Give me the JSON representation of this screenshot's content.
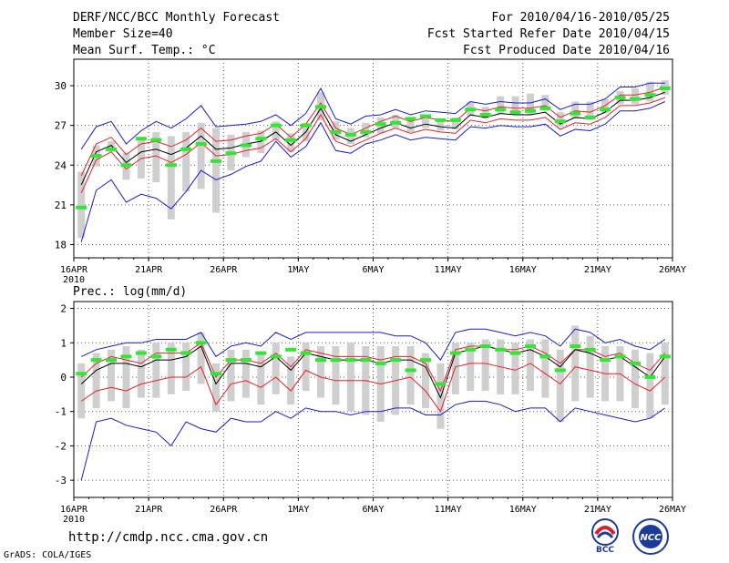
{
  "header": {
    "title": "DERF/NCC/BCC Monthly Forecast",
    "member_size": "Member Size=40",
    "variable": "Mean Surf. Temp.: °C",
    "forecast_period": "For 2010/04/16-2010/05/25",
    "started_refer": "Fcst Started Refer Date 2010/04/15",
    "produced": "Fcst Produced Date 2010/04/16"
  },
  "footer": {
    "url": "http://cmdp.ncc.cma.gov.cn",
    "credit": "GrADS: COLA/IGES"
  },
  "logos": {
    "bcc": "BCC",
    "ncc": "NCC"
  },
  "colors": {
    "mean_line": "#000000",
    "spread_line": "#e8212a",
    "range_line": "#1a1ad6",
    "box": "#cfcfcf",
    "marker": "#33e633",
    "grid": "#555555"
  },
  "chart_data": [
    {
      "type": "line",
      "title": "Mean Surf. Temp.: °C",
      "xlabel": "",
      "ylabel": "",
      "x_ticks": [
        "16APR",
        "21APR",
        "26APR",
        "1MAY",
        "6MAY",
        "11MAY",
        "16MAY",
        "21MAY",
        "26MAY"
      ],
      "x_year": "2010",
      "xlim": [
        0,
        40
      ],
      "ylim": [
        17,
        32
      ],
      "y_ticks": [
        18,
        21,
        24,
        27,
        30
      ],
      "x": [
        0,
        1,
        2,
        3,
        4,
        5,
        6,
        7,
        8,
        9,
        10,
        11,
        12,
        13,
        14,
        15,
        16,
        17,
        18,
        19,
        20,
        21,
        22,
        23,
        24,
        25,
        26,
        27,
        28,
        29,
        30,
        31,
        32,
        33,
        34,
        35,
        36,
        37,
        38,
        39
      ],
      "series": [
        {
          "name": "ensemble mean",
          "values": [
            22.5,
            25.0,
            25.5,
            24.2,
            25.0,
            25.2,
            24.8,
            25.3,
            26.2,
            25.2,
            25.3,
            25.6,
            25.8,
            26.5,
            25.5,
            26.5,
            28.3,
            26.3,
            25.8,
            26.3,
            26.8,
            27.2,
            26.8,
            27.1,
            26.9,
            26.8,
            27.8,
            27.6,
            27.9,
            27.8,
            27.8,
            28.0,
            27.1,
            27.6,
            27.5,
            28.0,
            28.9,
            28.9,
            29.1,
            29.5
          ]
        },
        {
          "name": "spread upper",
          "values": [
            23.2,
            25.6,
            26.1,
            24.8,
            25.6,
            25.8,
            25.4,
            25.9,
            26.8,
            25.8,
            25.9,
            26.2,
            26.4,
            27.1,
            26.1,
            27.1,
            28.7,
            26.8,
            26.3,
            26.8,
            27.3,
            27.7,
            27.3,
            27.6,
            27.4,
            27.3,
            28.3,
            28.1,
            28.4,
            28.3,
            28.3,
            28.5,
            27.6,
            28.1,
            28.0,
            28.5,
            29.3,
            29.3,
            29.5,
            29.9
          ]
        },
        {
          "name": "spread lower",
          "values": [
            21.9,
            24.4,
            25.0,
            23.7,
            24.5,
            24.7,
            24.2,
            24.8,
            25.7,
            24.7,
            24.8,
            25.1,
            25.3,
            26.0,
            25.0,
            26.0,
            27.8,
            25.8,
            25.4,
            25.9,
            26.4,
            26.8,
            26.4,
            26.7,
            26.5,
            26.4,
            27.4,
            27.2,
            27.5,
            27.4,
            27.4,
            27.6,
            26.7,
            27.2,
            27.1,
            27.6,
            28.5,
            28.5,
            28.7,
            29.1
          ]
        },
        {
          "name": "range max",
          "values": [
            25.2,
            26.9,
            27.3,
            25.6,
            26.6,
            27.3,
            26.8,
            27.5,
            28.5,
            26.9,
            27.0,
            27.1,
            27.3,
            27.8,
            27.0,
            27.9,
            29.8,
            27.5,
            27.1,
            27.7,
            27.8,
            28.2,
            27.8,
            28.1,
            28.0,
            27.9,
            28.8,
            28.6,
            28.8,
            28.7,
            28.7,
            29.0,
            28.2,
            28.6,
            28.6,
            29.0,
            29.9,
            29.9,
            30.2,
            30.2
          ]
        },
        {
          "name": "range min",
          "values": [
            18.2,
            22.1,
            22.9,
            21.2,
            21.8,
            21.5,
            20.7,
            22.0,
            23.6,
            22.9,
            23.3,
            23.9,
            24.3,
            25.8,
            24.6,
            25.4,
            27.2,
            25.1,
            24.9,
            25.6,
            25.9,
            26.3,
            25.9,
            26.1,
            26.0,
            25.9,
            26.9,
            26.8,
            27.0,
            26.9,
            26.9,
            27.1,
            26.2,
            26.7,
            26.6,
            27.1,
            28.1,
            28.1,
            28.3,
            28.8
          ]
        },
        {
          "name": "box top",
          "values": [
            23.5,
            25.5,
            25.8,
            24.9,
            26.0,
            26.5,
            26.2,
            26.5,
            27.2,
            26.8,
            26.3,
            26.5,
            26.6,
            27.3,
            26.4,
            27.2,
            29.5,
            27.3,
            26.8,
            27.2,
            27.6,
            27.8,
            27.5,
            27.8,
            27.5,
            27.6,
            28.8,
            28.4,
            29.2,
            29.2,
            29.4,
            29.3,
            28.0,
            28.8,
            28.8,
            29.0,
            29.6,
            29.8,
            30.3,
            30.4
          ]
        },
        {
          "name": "box bottom",
          "values": [
            18.5,
            23.9,
            25.0,
            22.9,
            23.0,
            22.7,
            19.9,
            22.0,
            22.2,
            20.4,
            23.6,
            24.6,
            24.9,
            25.9,
            25.0,
            25.8,
            27.4,
            25.9,
            25.6,
            26.1,
            26.4,
            26.8,
            26.5,
            26.8,
            26.6,
            26.7,
            27.7,
            27.5,
            27.9,
            27.8,
            27.8,
            28.1,
            26.9,
            27.5,
            27.4,
            27.9,
            28.6,
            28.6,
            28.8,
            29.3
          ]
        },
        {
          "name": "box mid",
          "values": [
            21.0,
            24.5,
            25.3,
            24.0,
            24.8,
            25.0,
            23.5,
            25.0,
            25.5,
            24.5,
            25.0,
            25.5,
            25.8,
            26.5,
            25.7,
            26.3,
            28.4,
            26.4,
            26.2,
            26.6,
            27.0,
            27.4,
            27.0,
            27.3,
            27.0,
            27.1,
            28.2,
            27.9,
            28.5,
            28.4,
            28.6,
            28.7,
            27.4,
            28.1,
            28.1,
            28.4,
            29.1,
            29.2,
            29.5,
            29.8
          ]
        },
        {
          "name": "marker",
          "values": [
            20.8,
            24.7,
            25.2,
            24.0,
            26.0,
            25.9,
            24.0,
            25.2,
            25.6,
            24.3,
            24.9,
            25.5,
            26.0,
            27.0,
            25.9,
            27.0,
            28.4,
            26.5,
            26.3,
            26.5,
            27.1,
            27.2,
            27.5,
            27.7,
            27.4,
            27.4,
            28.2,
            27.8,
            28.2,
            28.0,
            28.1,
            28.3,
            27.3,
            27.9,
            27.6,
            28.2,
            29.1,
            29.0,
            29.3,
            29.8
          ]
        }
      ]
    },
    {
      "type": "line",
      "title": "Prec.: log(mm/d)",
      "xlabel": "",
      "ylabel": "",
      "x_ticks": [
        "16APR",
        "21APR",
        "26APR",
        "1MAY",
        "6MAY",
        "11MAY",
        "16MAY",
        "21MAY",
        "26MAY"
      ],
      "x_year": "2010",
      "xlim": [
        0,
        40
      ],
      "ylim": [
        -3.5,
        2.2
      ],
      "y_ticks": [
        -3,
        -2,
        -1,
        0,
        1,
        2
      ],
      "x": [
        0,
        1,
        2,
        3,
        4,
        5,
        6,
        7,
        8,
        9,
        10,
        11,
        12,
        13,
        14,
        15,
        16,
        17,
        18,
        19,
        20,
        21,
        22,
        23,
        24,
        25,
        26,
        27,
        28,
        29,
        30,
        31,
        32,
        33,
        34,
        35,
        36,
        37,
        38,
        39
      ],
      "series": [
        {
          "name": "ensemble mean",
          "values": [
            -0.2,
            0.2,
            0.4,
            0.4,
            0.3,
            0.5,
            0.5,
            0.6,
            0.9,
            -0.2,
            0.4,
            0.4,
            0.3,
            0.6,
            0.2,
            0.7,
            0.6,
            0.5,
            0.5,
            0.5,
            0.4,
            0.5,
            0.5,
            0.3,
            -0.6,
            0.7,
            0.8,
            0.9,
            0.8,
            0.7,
            0.8,
            0.6,
            0.3,
            0.8,
            0.7,
            0.5,
            0.6,
            0.3,
            0.0,
            0.6
          ]
        },
        {
          "name": "spread upper",
          "values": [
            0.0,
            0.4,
            0.6,
            0.5,
            0.4,
            0.7,
            0.7,
            0.7,
            1.0,
            0.0,
            0.5,
            0.5,
            0.4,
            0.7,
            0.3,
            0.8,
            0.7,
            0.6,
            0.6,
            0.6,
            0.5,
            0.6,
            0.6,
            0.4,
            -0.4,
            0.8,
            0.9,
            0.9,
            0.8,
            0.8,
            0.9,
            0.7,
            0.4,
            0.8,
            0.8,
            0.6,
            0.7,
            0.4,
            0.2,
            0.7
          ]
        },
        {
          "name": "spread lower",
          "values": [
            -0.7,
            -0.4,
            -0.3,
            -0.4,
            -0.2,
            -0.1,
            0.0,
            0.0,
            0.3,
            -0.8,
            -0.2,
            -0.1,
            -0.3,
            0.0,
            -0.4,
            0.2,
            0.0,
            -0.1,
            -0.1,
            -0.1,
            -0.2,
            -0.1,
            0.0,
            -0.4,
            -1.0,
            0.3,
            0.4,
            0.4,
            0.3,
            0.2,
            0.4,
            0.1,
            -0.2,
            0.3,
            0.2,
            0.1,
            0.1,
            -0.2,
            -0.4,
            0.0
          ]
        },
        {
          "name": "range max",
          "values": [
            0.6,
            0.8,
            0.9,
            1.0,
            1.0,
            1.1,
            1.1,
            1.1,
            1.3,
            0.6,
            0.9,
            1.0,
            0.9,
            1.3,
            1.1,
            1.3,
            1.3,
            1.3,
            1.3,
            1.3,
            1.3,
            1.2,
            1.2,
            1.0,
            0.5,
            1.3,
            1.4,
            1.4,
            1.3,
            1.2,
            1.3,
            1.2,
            0.9,
            1.4,
            1.3,
            1.0,
            1.1,
            0.9,
            0.8,
            1.1
          ]
        },
        {
          "name": "range min",
          "values": [
            -3.0,
            -1.3,
            -1.2,
            -1.4,
            -1.5,
            -1.6,
            -2.0,
            -1.3,
            -1.5,
            -1.6,
            -1.2,
            -1.3,
            -1.3,
            -1.0,
            -1.2,
            -0.9,
            -1.0,
            -1.0,
            -1.1,
            -1.0,
            -1.0,
            -0.9,
            -0.9,
            -1.1,
            -1.1,
            -0.8,
            -0.7,
            -0.7,
            -0.8,
            -1.0,
            -0.9,
            -0.9,
            -1.3,
            -0.9,
            -1.0,
            -1.1,
            -1.2,
            -1.3,
            -1.2,
            -0.9
          ]
        },
        {
          "name": "box top",
          "values": [
            0.4,
            0.7,
            0.8,
            0.9,
            0.8,
            1.0,
            1.0,
            1.0,
            1.3,
            0.4,
            0.8,
            0.8,
            0.7,
            1.0,
            0.6,
            1.0,
            0.9,
            0.9,
            1.0,
            0.9,
            0.9,
            0.9,
            0.9,
            0.7,
            0.4,
            1.0,
            1.0,
            1.1,
            1.1,
            1.0,
            1.1,
            1.1,
            0.8,
            1.5,
            1.2,
            0.9,
            0.9,
            0.8,
            0.7,
            1.0
          ]
        },
        {
          "name": "box bottom",
          "values": [
            -1.2,
            -0.9,
            -0.7,
            -0.9,
            -0.6,
            -0.6,
            -0.5,
            -0.4,
            -0.2,
            -1.0,
            -0.7,
            -0.6,
            -0.8,
            -0.5,
            -0.8,
            -0.4,
            -0.6,
            -0.8,
            -1.0,
            -1.1,
            -1.3,
            -1.1,
            -0.8,
            -0.9,
            -1.5,
            -0.5,
            -0.4,
            -0.4,
            -0.5,
            -0.5,
            -0.4,
            -0.6,
            -1.3,
            -0.7,
            -0.6,
            -0.7,
            -0.7,
            -0.9,
            -1.2,
            -0.8
          ]
        },
        {
          "name": "box mid",
          "values": [
            -0.2,
            0.2,
            0.4,
            0.4,
            0.3,
            0.5,
            0.5,
            0.6,
            0.9,
            -0.2,
            0.4,
            0.4,
            0.3,
            0.6,
            0.2,
            0.7,
            0.6,
            0.5,
            0.5,
            0.5,
            0.4,
            0.5,
            0.5,
            0.3,
            -0.6,
            0.7,
            0.8,
            0.9,
            0.8,
            0.7,
            0.8,
            0.6,
            0.3,
            0.8,
            0.7,
            0.5,
            0.6,
            0.3,
            0.0,
            0.6
          ]
        },
        {
          "name": "marker",
          "values": [
            0.1,
            0.5,
            0.5,
            0.6,
            0.7,
            0.6,
            0.8,
            0.7,
            1.0,
            0.1,
            0.5,
            0.5,
            0.7,
            0.6,
            0.8,
            0.7,
            0.5,
            0.5,
            0.5,
            0.5,
            0.4,
            0.5,
            0.2,
            0.5,
            -0.2,
            0.7,
            0.8,
            0.9,
            0.8,
            0.7,
            0.9,
            0.6,
            0.2,
            0.9,
            0.8,
            0.5,
            0.6,
            0.4,
            0.0,
            0.6
          ]
        }
      ]
    }
  ]
}
